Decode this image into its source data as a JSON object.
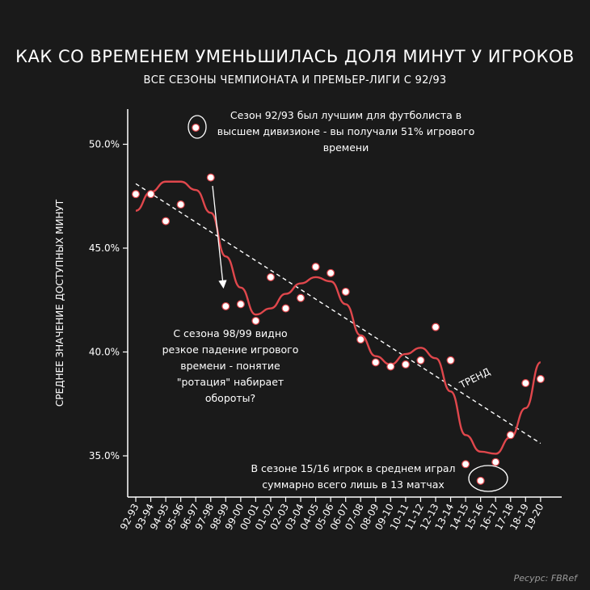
{
  "title": "КАК СО ВРЕМЕНЕМ УМЕНЬШИЛАСЬ ДОЛЯ МИНУТ У ИГРОКОВ",
  "subtitle": "ВСЕ СЕЗОНЫ ЧЕМПИОНАТА И ПРЕМЬЕР-ЛИГИ С 92/93",
  "source": "Ресурс: FBRef",
  "chart_data": {
    "type": "scatter",
    "ylabel": "СРЕДНЕЕ ЗНАЧЕНИЕ ДОСТУПНЫХ МИНУТ",
    "ylim": [
      33.0,
      52.0
    ],
    "yticks": [
      "35.0%",
      "40.0%",
      "45.0%",
      "50.0%"
    ],
    "ytick_values": [
      35,
      40,
      45,
      50
    ],
    "categories": [
      "92-93",
      "93-94",
      "94-95",
      "95-96",
      "96-97",
      "97-98",
      "98-99",
      "99-00",
      "00-01",
      "01-02",
      "02-03",
      "03-04",
      "04-05",
      "05-06",
      "06-07",
      "07-08",
      "08-09",
      "09-10",
      "10-11",
      "11-12",
      "12-13",
      "13-14",
      "14-15",
      "15-16",
      "16-17",
      "17-18",
      "18-19",
      "19-20"
    ],
    "series": [
      {
        "values": [
          47.6,
          47.6,
          46.3,
          47.1,
          50.8,
          48.4,
          42.2,
          42.3,
          41.5,
          43.6,
          42.1,
          42.6,
          44.1,
          43.8,
          42.9,
          40.6,
          39.5,
          39.3,
          39.4,
          39.6,
          41.2,
          39.6,
          34.6,
          33.8,
          34.7,
          36.0,
          38.5,
          38.7
        ],
        "color": "#ffffff"
      },
      {
        "values": [
          46.8,
          47.7,
          48.2,
          48.2,
          47.8,
          46.7,
          44.6,
          43.1,
          41.8,
          42.1,
          42.8,
          43.3,
          43.6,
          43.4,
          42.3,
          40.8,
          39.8,
          39.4,
          39.9,
          40.2,
          39.7,
          38.1,
          36.0,
          35.2,
          35.1,
          35.9,
          37.3,
          39.5
        ],
        "color": "#e0474c"
      }
    ],
    "trend": {
      "label": "ТРЕНД",
      "start": 48.1,
      "end": 35.6
    },
    "annotations": [
      {
        "lines": [
          "Сезон 92/93 был лучшим для футболиста в",
          "высшем дивизионе - вы получали 51% игрового",
          "времени"
        ]
      },
      {
        "lines": [
          "С сезона 98/99 видно",
          "резкое падение игрового",
          "времени - понятие",
          "\"ротация\" набирает",
          "обороты?"
        ]
      },
      {
        "lines": [
          "В сезоне 15/16 игрок в среднем играл",
          "суммарно всего лишь в 13 матчах"
        ]
      }
    ],
    "grid": false,
    "legend": "none"
  }
}
